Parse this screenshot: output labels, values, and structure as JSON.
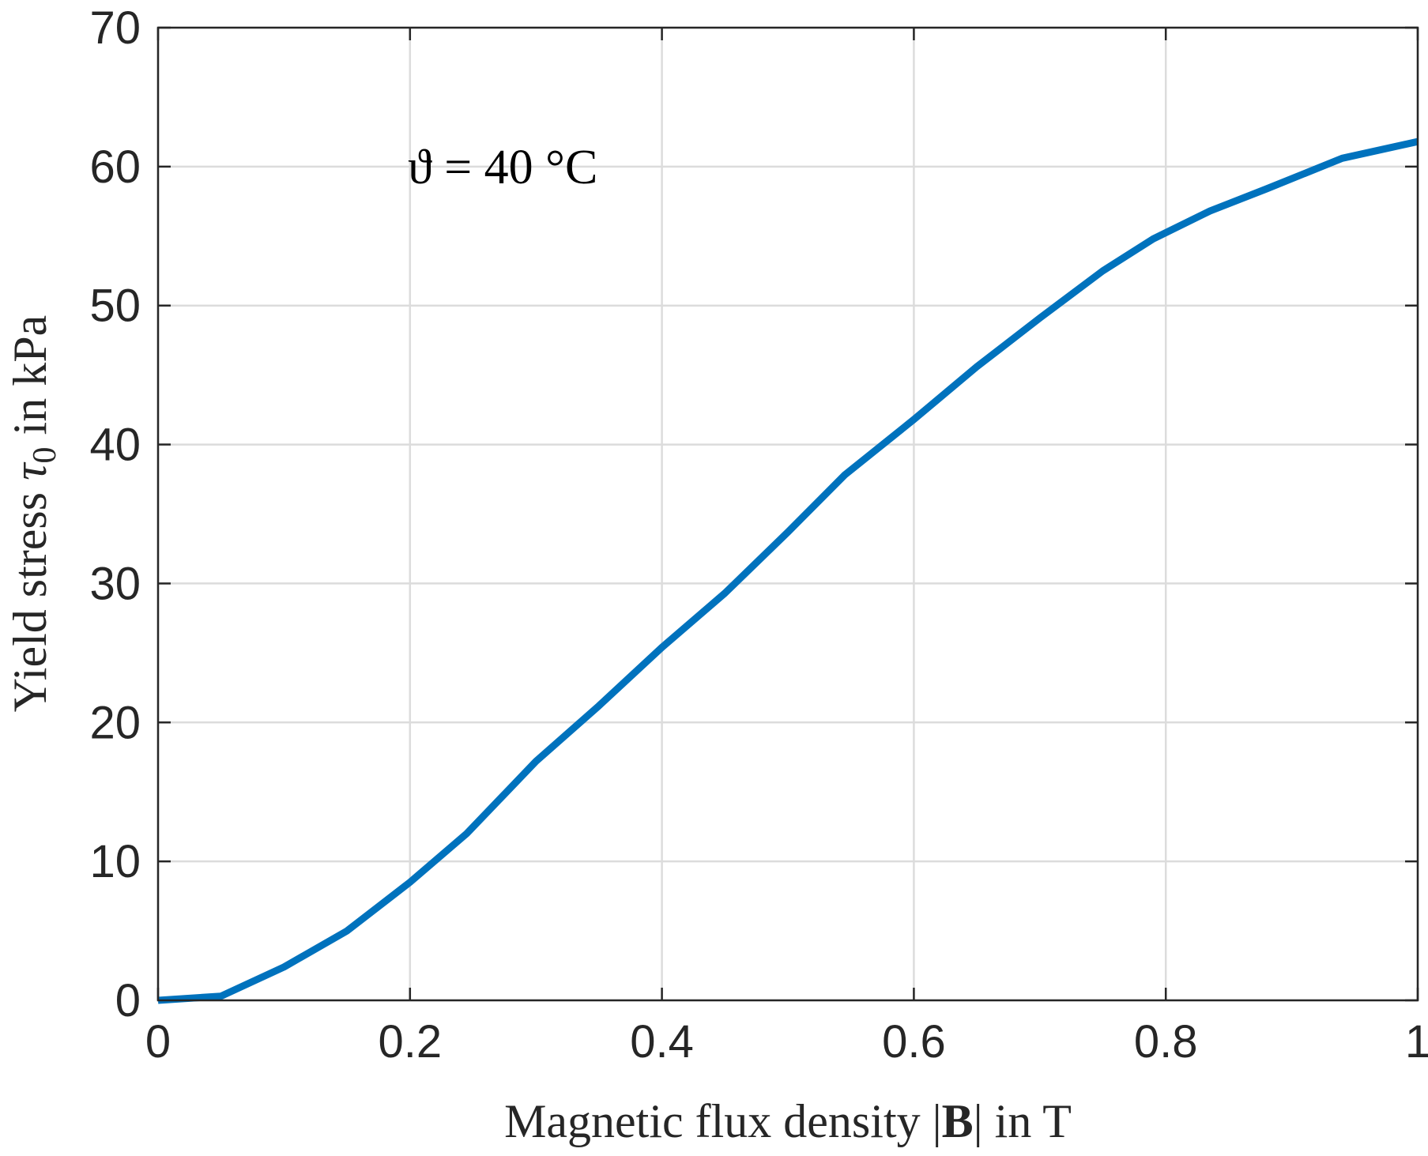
{
  "chart_data": {
    "type": "line",
    "annotation": "ϑ = 40 °C",
    "xlabel_parts": {
      "before": "Magnetic flux density |",
      "bold": "B",
      "after": "| in T"
    },
    "ylabel_parts": {
      "before": "Yield stress ",
      "symbol": "τ",
      "subscript": "0",
      "after": " in kPa"
    },
    "xlim": [
      0,
      1
    ],
    "ylim": [
      0,
      70
    ],
    "x_ticks": [
      0,
      0.2,
      0.4,
      0.6,
      0.8,
      1
    ],
    "x_tick_labels": [
      "0",
      "0.2",
      "0.4",
      "0.6",
      "0.8",
      "1"
    ],
    "y_ticks": [
      0,
      10,
      20,
      30,
      40,
      50,
      60,
      70
    ],
    "y_tick_labels": [
      "0",
      "10",
      "20",
      "30",
      "40",
      "50",
      "60",
      "70"
    ],
    "grid": true,
    "colors": {
      "line": "#0072BD",
      "grid": "#dcdcdc",
      "axis": "#262626"
    },
    "series": [
      {
        "x": [
          0,
          0.05,
          0.1,
          0.15,
          0.2,
          0.245,
          0.3,
          0.35,
          0.4,
          0.45,
          0.5,
          0.545,
          0.6,
          0.65,
          0.7,
          0.75,
          0.79,
          0.835,
          0.88,
          0.94,
          1.0
        ],
        "y": [
          0,
          0.3,
          2.4,
          5.0,
          8.5,
          12.0,
          17.2,
          21.2,
          25.4,
          29.3,
          33.7,
          37.8,
          41.8,
          45.6,
          49.1,
          52.5,
          54.8,
          56.8,
          58.4,
          60.6,
          61.8
        ]
      }
    ]
  }
}
